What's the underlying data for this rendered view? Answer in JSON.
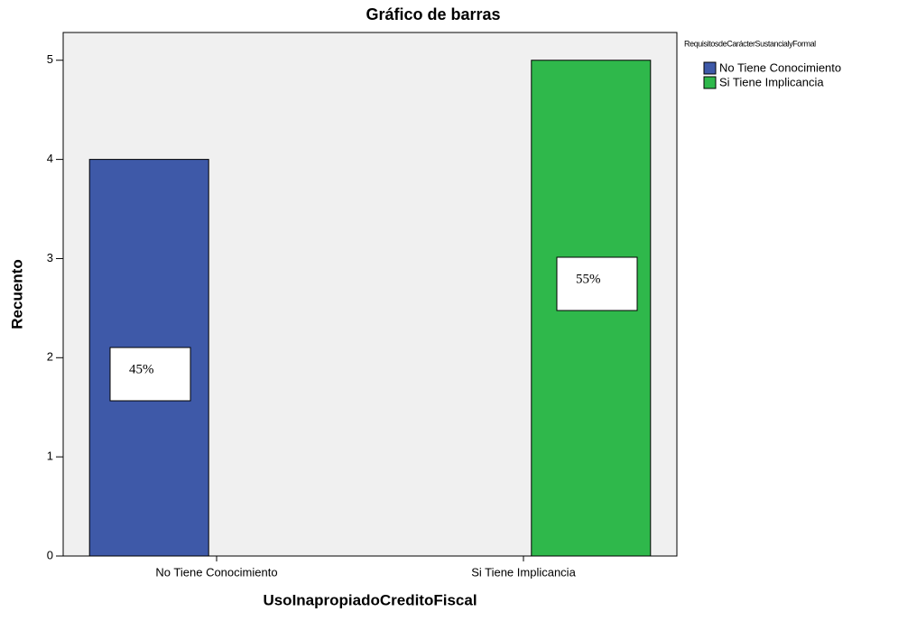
{
  "chart_data": {
    "type": "bar",
    "title": "Gráfico de barras",
    "x_label": "UsoInapropiadoCreditoFiscal",
    "y_label": "Recuento",
    "legend_title": "RequisitosdeCarácterSustancialyFormal",
    "legend_position": "right",
    "categories": [
      "No Tiene Conocimiento",
      "Si Tiene Implicancia"
    ],
    "series": [
      {
        "name": "No Tiene Conocimiento",
        "color": "#3e59a8",
        "values": [
          4,
          null
        ]
      },
      {
        "name": "Si Tiene Implicancia",
        "color": "#2fb84b",
        "values": [
          null,
          5
        ]
      }
    ],
    "annotations": [
      "45%",
      "55%"
    ],
    "ylim": [
      0,
      5.28
    ],
    "yticks": [
      0,
      1,
      2,
      3,
      4,
      5
    ],
    "grid": false
  }
}
